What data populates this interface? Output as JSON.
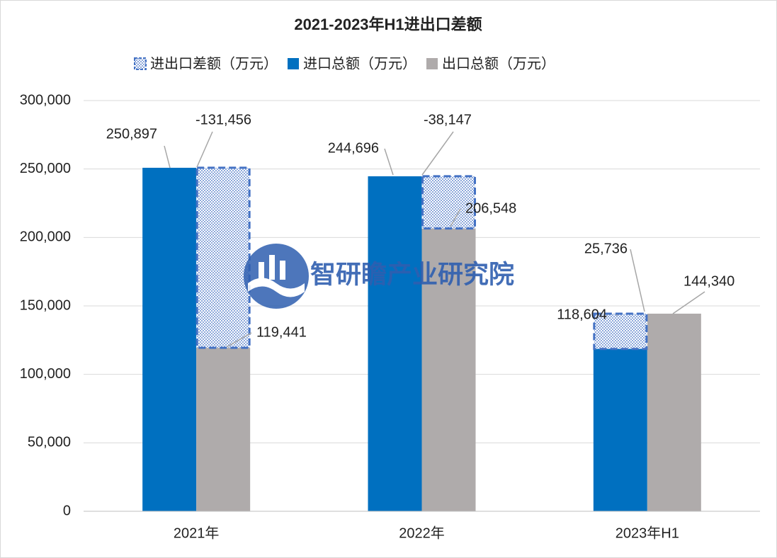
{
  "chart_data": {
    "type": "bar",
    "title": "2021-2023年H1进出口差额",
    "categories": [
      "2021年",
      "2022年",
      "2023年H1"
    ],
    "series": [
      {
        "name": "进出口差额（万元）",
        "color": "#4472c4",
        "values": [
          -131456,
          -38147,
          25736
        ],
        "value_labels": [
          "-131,456",
          "-38,147",
          "25,736"
        ]
      },
      {
        "name": "进口总额（万元）",
        "color": "#0070c0",
        "values": [
          250897,
          244696,
          118604
        ],
        "value_labels": [
          "250,897",
          "244,696",
          "118,604"
        ]
      },
      {
        "name": "出口总额（万元）",
        "color": "#afabab",
        "values": [
          119441,
          206548,
          144340
        ],
        "value_labels": [
          "119,441",
          "206,548",
          "144,340"
        ]
      }
    ],
    "ylim": [
      0,
      300000
    ],
    "yticks": [
      0,
      {
        "value": 50000,
        "label": "50,000"
      },
      {
        "value": 100000,
        "label": "100,000"
      },
      {
        "value": 150000,
        "label": "150,000"
      },
      {
        "value": 200000,
        "label": "200,000"
      },
      {
        "value": 250000,
        "label": "250,000"
      },
      {
        "value": 300000,
        "label": "300,000"
      }
    ],
    "grid": true,
    "legend": "top",
    "watermark": "智研瞻产业研究院"
  }
}
